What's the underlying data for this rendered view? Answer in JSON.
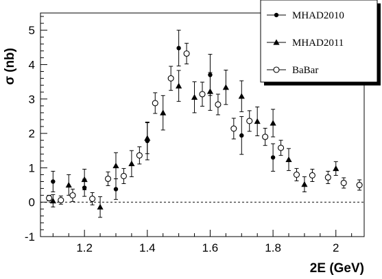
{
  "chart_data": {
    "type": "scatter",
    "xlabel": "2E (GeV)",
    "ylabel": "σ (nb)",
    "xlim": [
      1.06,
      2.09
    ],
    "ylim": [
      -1,
      5.5
    ],
    "x_ticks": [
      "1.2",
      "1.4",
      "1.6",
      "1.8",
      "2"
    ],
    "y_ticks": [
      "-1",
      "0",
      "1",
      "2",
      "3",
      "4",
      "5"
    ],
    "x_tick_values": [
      1.2,
      1.4,
      1.6,
      1.8,
      2.0
    ],
    "y_tick_values": [
      -1,
      0,
      1,
      2,
      3,
      4,
      5
    ],
    "reference_line": {
      "y": 0,
      "style": "dashed"
    },
    "legend": {
      "placement": "top-right"
    },
    "series": [
      {
        "name": "MHAD2010",
        "marker": "filled-circle",
        "points": [
          {
            "x": 1.1,
            "y": 0.6,
            "err": 0.3
          },
          {
            "x": 1.2,
            "y": 0.42,
            "err": 0.25
          },
          {
            "x": 1.3,
            "y": 0.38,
            "err": 0.3
          },
          {
            "x": 1.4,
            "y": 1.78,
            "err": 0.55
          },
          {
            "x": 1.5,
            "y": 4.48,
            "err": 0.52
          },
          {
            "x": 1.6,
            "y": 3.7,
            "err": 0.6
          },
          {
            "x": 1.7,
            "y": 1.94,
            "err": 0.55
          },
          {
            "x": 1.8,
            "y": 1.3,
            "err": 0.4
          }
        ]
      },
      {
        "name": "MHAD2011",
        "marker": "filled-triangle",
        "points": [
          {
            "x": 1.1,
            "y": 0.04,
            "err": 0.18
          },
          {
            "x": 1.15,
            "y": 0.5,
            "err": 0.3
          },
          {
            "x": 1.2,
            "y": 0.66,
            "err": 0.3
          },
          {
            "x": 1.25,
            "y": -0.14,
            "err": 0.3
          },
          {
            "x": 1.3,
            "y": 1.06,
            "err": 0.38
          },
          {
            "x": 1.35,
            "y": 1.12,
            "err": 0.38
          },
          {
            "x": 1.4,
            "y": 1.86,
            "err": 0.45
          },
          {
            "x": 1.45,
            "y": 2.6,
            "err": 0.5
          },
          {
            "x": 1.5,
            "y": 3.38,
            "err": 0.45
          },
          {
            "x": 1.55,
            "y": 3.05,
            "err": 0.45
          },
          {
            "x": 1.6,
            "y": 3.22,
            "err": 0.55
          },
          {
            "x": 1.65,
            "y": 3.34,
            "err": 0.5
          },
          {
            "x": 1.7,
            "y": 3.08,
            "err": 0.45
          },
          {
            "x": 1.75,
            "y": 2.35,
            "err": 0.42
          },
          {
            "x": 1.8,
            "y": 2.3,
            "err": 0.4
          },
          {
            "x": 1.85,
            "y": 1.24,
            "err": 0.32
          },
          {
            "x": 1.9,
            "y": 0.52,
            "err": 0.22
          },
          {
            "x": 2.0,
            "y": 0.98,
            "err": 0.2
          }
        ]
      },
      {
        "name": "BaBar",
        "marker": "open-circle",
        "points": [
          {
            "x": 1.0875,
            "y": 0.12,
            "err": 0.08
          },
          {
            "x": 1.125,
            "y": 0.06,
            "err": 0.12
          },
          {
            "x": 1.1625,
            "y": 0.2,
            "err": 0.18
          },
          {
            "x": 1.225,
            "y": 0.1,
            "err": 0.18
          },
          {
            "x": 1.275,
            "y": 0.68,
            "err": 0.2
          },
          {
            "x": 1.325,
            "y": 0.76,
            "err": 0.22
          },
          {
            "x": 1.375,
            "y": 1.36,
            "err": 0.25
          },
          {
            "x": 1.425,
            "y": 2.88,
            "err": 0.3
          },
          {
            "x": 1.475,
            "y": 3.6,
            "err": 0.35
          },
          {
            "x": 1.525,
            "y": 4.32,
            "err": 0.3
          },
          {
            "x": 1.575,
            "y": 3.14,
            "err": 0.35
          },
          {
            "x": 1.625,
            "y": 2.84,
            "err": 0.3
          },
          {
            "x": 1.675,
            "y": 2.14,
            "err": 0.3
          },
          {
            "x": 1.725,
            "y": 2.36,
            "err": 0.3
          },
          {
            "x": 1.775,
            "y": 1.9,
            "err": 0.25
          },
          {
            "x": 1.825,
            "y": 1.58,
            "err": 0.22
          },
          {
            "x": 1.875,
            "y": 0.8,
            "err": 0.18
          },
          {
            "x": 1.925,
            "y": 0.78,
            "err": 0.18
          },
          {
            "x": 1.975,
            "y": 0.72,
            "err": 0.18
          },
          {
            "x": 2.025,
            "y": 0.56,
            "err": 0.15
          },
          {
            "x": 2.075,
            "y": 0.5,
            "err": 0.15
          }
        ]
      }
    ]
  }
}
